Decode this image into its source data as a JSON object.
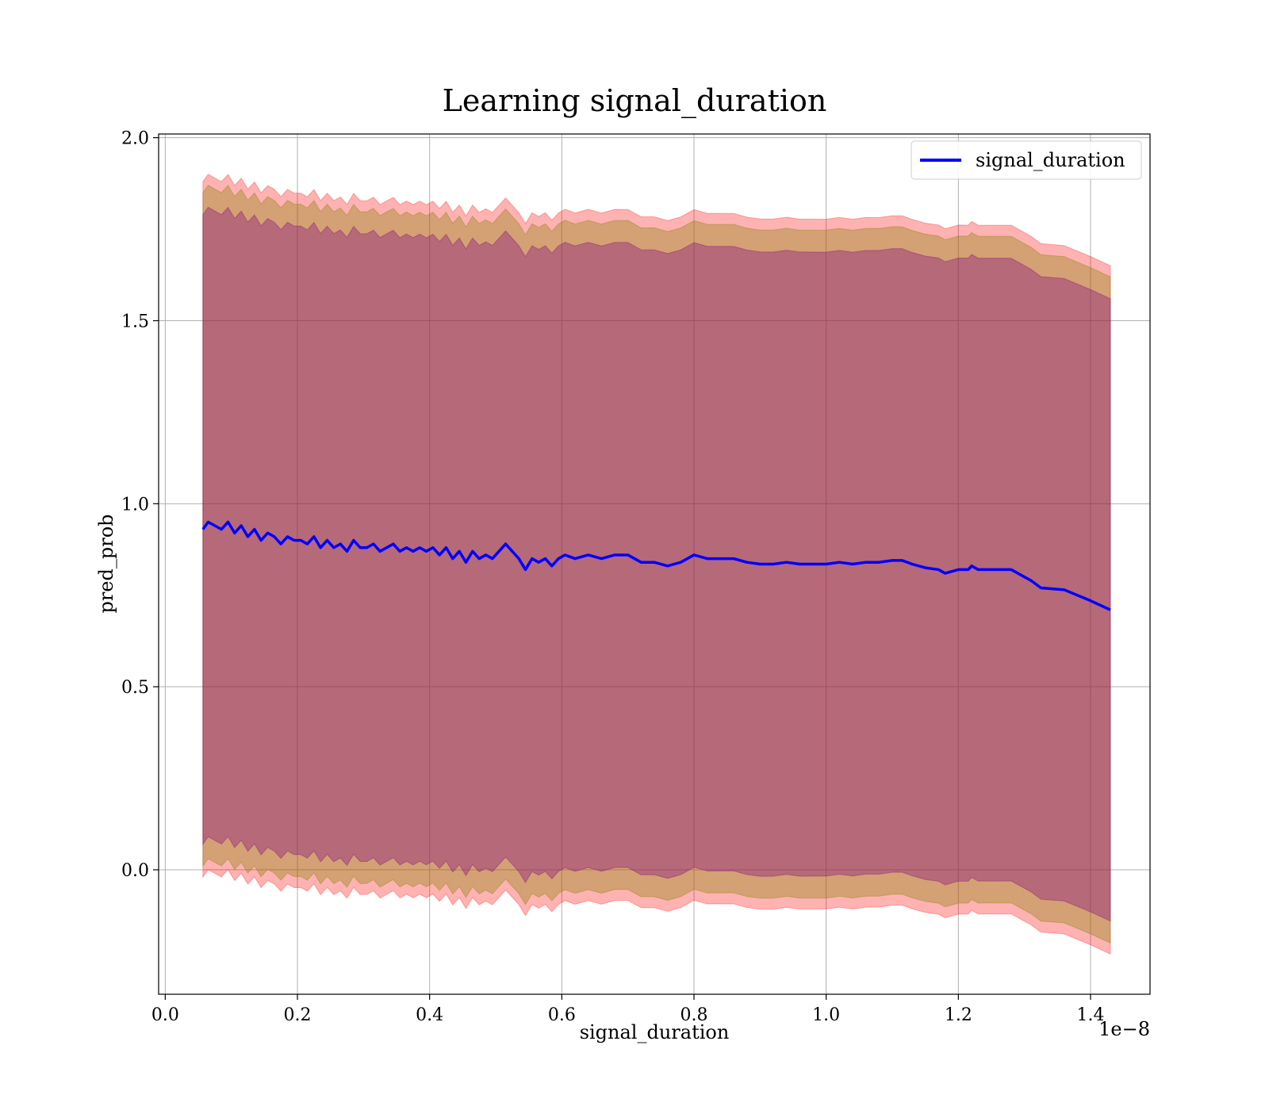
{
  "chart_data": {
    "type": "area",
    "title": "Learning signal_duration",
    "xlabel": "signal_duration",
    "ylabel": "pred_prob",
    "x_offset_label": "1e−8",
    "x_scale": 1e-08,
    "xlim": [
      -0.01,
      1.49
    ],
    "ylim": [
      -0.34,
      2.01
    ],
    "grid": true,
    "legend_position": "top-right",
    "x_ticks": [
      0.0,
      0.2,
      0.4,
      0.6,
      0.8,
      1.0,
      1.2,
      1.4
    ],
    "x_tick_labels": [
      "0.0",
      "0.2",
      "0.4",
      "0.6",
      "0.8",
      "1.0",
      "1.2",
      "1.4"
    ],
    "y_ticks": [
      0.0,
      0.5,
      1.0,
      1.5,
      2.0
    ],
    "y_tick_labels": [
      "0.0",
      "0.5",
      "1.0",
      "1.5",
      "2.0"
    ],
    "series": [
      {
        "name": "signal_duration",
        "color": "#0000ff",
        "x": [
          0.057,
          0.065,
          0.075,
          0.085,
          0.095,
          0.105,
          0.115,
          0.125,
          0.135,
          0.145,
          0.155,
          0.165,
          0.175,
          0.185,
          0.195,
          0.205,
          0.215,
          0.225,
          0.235,
          0.245,
          0.255,
          0.265,
          0.275,
          0.285,
          0.295,
          0.305,
          0.315,
          0.325,
          0.335,
          0.345,
          0.355,
          0.365,
          0.375,
          0.385,
          0.395,
          0.405,
          0.415,
          0.425,
          0.435,
          0.445,
          0.455,
          0.465,
          0.475,
          0.485,
          0.495,
          0.505,
          0.515,
          0.525,
          0.535,
          0.545,
          0.555,
          0.565,
          0.575,
          0.585,
          0.595,
          0.605,
          0.62,
          0.64,
          0.66,
          0.68,
          0.7,
          0.72,
          0.74,
          0.76,
          0.78,
          0.8,
          0.82,
          0.84,
          0.86,
          0.88,
          0.9,
          0.92,
          0.94,
          0.96,
          0.98,
          1.0,
          1.02,
          1.04,
          1.06,
          1.08,
          1.1,
          1.115,
          1.13,
          1.15,
          1.17,
          1.18,
          1.2,
          1.215,
          1.22,
          1.23,
          1.25,
          1.28,
          1.3,
          1.31,
          1.325,
          1.36,
          1.4,
          1.43
        ],
        "y": [
          0.93,
          0.95,
          0.94,
          0.93,
          0.95,
          0.92,
          0.94,
          0.91,
          0.93,
          0.9,
          0.92,
          0.91,
          0.89,
          0.91,
          0.9,
          0.9,
          0.89,
          0.91,
          0.88,
          0.9,
          0.88,
          0.89,
          0.87,
          0.9,
          0.88,
          0.88,
          0.89,
          0.87,
          0.88,
          0.89,
          0.87,
          0.88,
          0.87,
          0.88,
          0.87,
          0.88,
          0.86,
          0.88,
          0.85,
          0.87,
          0.84,
          0.87,
          0.85,
          0.86,
          0.85,
          0.87,
          0.89,
          0.87,
          0.85,
          0.82,
          0.85,
          0.84,
          0.85,
          0.83,
          0.85,
          0.86,
          0.85,
          0.86,
          0.85,
          0.86,
          0.86,
          0.84,
          0.84,
          0.83,
          0.84,
          0.86,
          0.85,
          0.85,
          0.85,
          0.84,
          0.835,
          0.835,
          0.84,
          0.835,
          0.835,
          0.835,
          0.84,
          0.835,
          0.84,
          0.84,
          0.845,
          0.845,
          0.835,
          0.825,
          0.82,
          0.81,
          0.82,
          0.82,
          0.83,
          0.82,
          0.82,
          0.82,
          0.8,
          0.79,
          0.77,
          0.765,
          0.735,
          0.71
        ]
      }
    ],
    "bands": [
      {
        "label_semantic": "outer-band",
        "color": "#ff0000",
        "opacity": 0.3,
        "half_width_start": 0.95,
        "half_width_end": 0.94
      },
      {
        "label_semantic": "middle-band",
        "color": "#808000",
        "opacity": 0.35,
        "half_width_start": 0.92,
        "half_width_end": 0.91
      },
      {
        "label_semantic": "inner-band",
        "color": "#800080",
        "opacity": 0.35,
        "half_width_start": 0.86,
        "half_width_end": 0.85
      }
    ]
  }
}
